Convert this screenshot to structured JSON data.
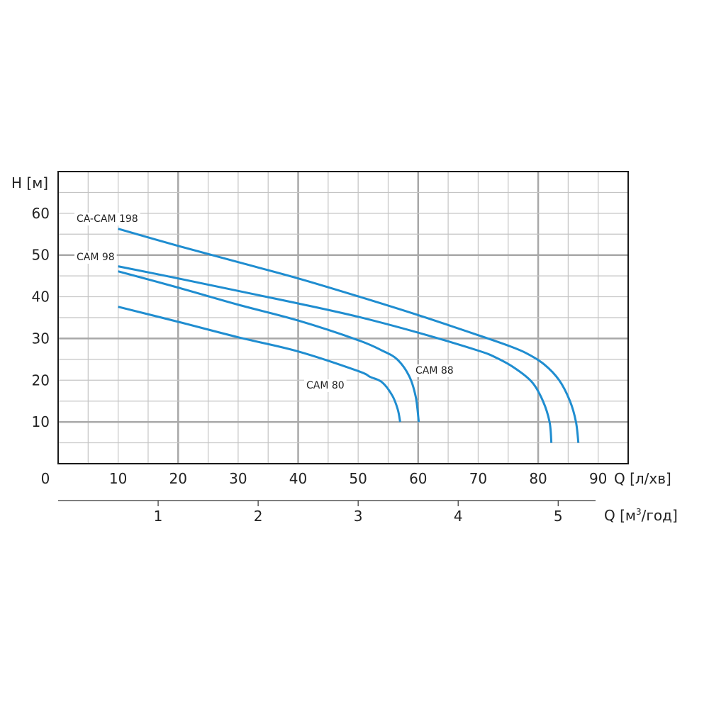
{
  "chart_data": {
    "type": "line",
    "ylabel": "H [м]",
    "xlabel": "Q [л/хв]",
    "x2label_prefix": "Q [м",
    "x2label_sup": "3",
    "x2label_suffix": "/год]",
    "xlim": [
      0,
      95
    ],
    "ylim": [
      0,
      70
    ],
    "x_ticks": [
      0,
      10,
      20,
      30,
      40,
      50,
      60,
      70,
      80,
      90
    ],
    "y_ticks": [
      10,
      20,
      30,
      40,
      50,
      60
    ],
    "x2_ticks": [
      1,
      2,
      3,
      4,
      5
    ],
    "grid": true,
    "series": [
      {
        "name": "CA-CAM 198",
        "color": "#1f8dd0",
        "points": [
          [
            10,
            56.3
          ],
          [
            20,
            52.2
          ],
          [
            30,
            48.3
          ],
          [
            40,
            44.4
          ],
          [
            50,
            40.1
          ],
          [
            60,
            35.6
          ],
          [
            70,
            30.8
          ],
          [
            75,
            28.3
          ],
          [
            78,
            26.5
          ],
          [
            81,
            23.8
          ],
          [
            83.5,
            20
          ],
          [
            85.3,
            15
          ],
          [
            86.3,
            10
          ],
          [
            86.7,
            5
          ]
        ]
      },
      {
        "name": "",
        "color": "#1f8dd0",
        "points": [
          [
            10,
            47.3
          ],
          [
            20,
            44.4
          ],
          [
            30,
            41.4
          ],
          [
            40,
            38.4
          ],
          [
            50,
            35.2
          ],
          [
            60,
            31.4
          ],
          [
            70,
            27.1
          ],
          [
            73,
            25.4
          ],
          [
            76,
            23
          ],
          [
            79,
            19.5
          ],
          [
            80.8,
            15
          ],
          [
            81.9,
            10
          ],
          [
            82.2,
            5
          ]
        ]
      },
      {
        "name": "CAM 88",
        "color": "#1f8dd0",
        "points": [
          [
            10,
            46.1
          ],
          [
            20,
            42.2
          ],
          [
            30,
            38.1
          ],
          [
            40,
            34.3
          ],
          [
            50,
            29.6
          ],
          [
            54,
            27.1
          ],
          [
            56.5,
            25
          ],
          [
            58.5,
            21
          ],
          [
            59.6,
            16
          ],
          [
            60.1,
            10
          ]
        ]
      },
      {
        "name": "CAM 80",
        "color": "#1f8dd0",
        "points": [
          [
            10,
            37.6
          ],
          [
            20,
            34
          ],
          [
            30,
            30.3
          ],
          [
            40,
            26.9
          ],
          [
            50,
            22.2
          ],
          [
            52,
            20.8
          ],
          [
            54,
            19.5
          ],
          [
            55.7,
            16.3
          ],
          [
            56.6,
            13
          ],
          [
            57,
            10
          ]
        ]
      }
    ],
    "series_labels": [
      "CA-CAM 198",
      "CAM 98",
      "CAM 88",
      "CAM 80"
    ]
  }
}
